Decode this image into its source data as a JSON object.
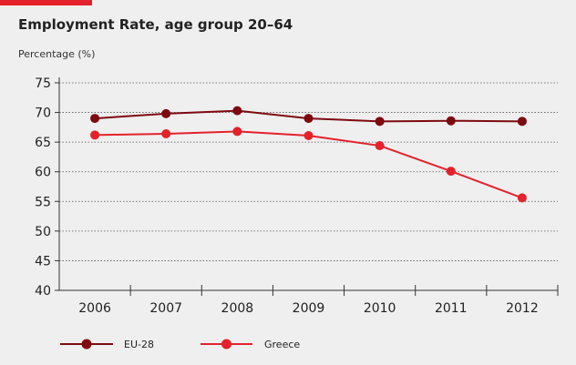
{
  "colors": {
    "accent": "#e3222b",
    "eu28": "#7d0a10",
    "greece": "#e3222b",
    "background": "#efefef"
  },
  "chart_data": {
    "type": "line",
    "title": "Employment Rate, age group 20–64",
    "ylabel": "Percentage (%)",
    "xlabel": "",
    "categories": [
      "2006",
      "2007",
      "2008",
      "2009",
      "2010",
      "2011",
      "2012"
    ],
    "ylim": [
      40,
      75
    ],
    "yticks": [
      40,
      45,
      50,
      55,
      60,
      65,
      70,
      75
    ],
    "grid": true,
    "legend_position": "bottom-left",
    "series": [
      {
        "name": "EU-28",
        "values": [
          69.0,
          69.8,
          70.3,
          69.0,
          68.5,
          68.6,
          68.5
        ]
      },
      {
        "name": "Greece",
        "values": [
          66.2,
          66.4,
          66.8,
          66.1,
          64.4,
          60.1,
          55.6
        ]
      }
    ]
  }
}
